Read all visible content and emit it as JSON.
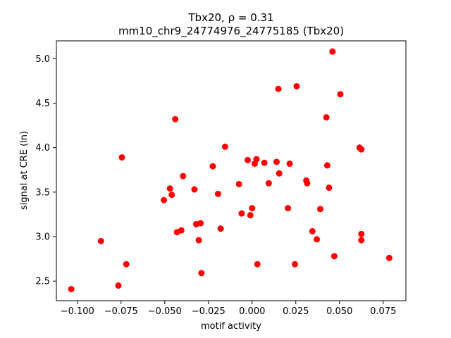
{
  "chart_data": {
    "type": "scatter",
    "title_line1": "Tbx20, ρ = 0.31",
    "title_line2": "mm10_chr9_24774976_24775185 (Tbx20)",
    "xlabel": "motif activity",
    "ylabel": "signal at CRE (ln)",
    "xlim": [
      -0.112,
      0.088
    ],
    "ylim": [
      2.28,
      5.2
    ],
    "xticks": [
      -0.1,
      -0.075,
      -0.05,
      -0.025,
      0.0,
      0.025,
      0.05,
      0.075
    ],
    "xtick_labels": [
      "−0.100",
      "−0.075",
      "−0.050",
      "−0.025",
      "0.000",
      "0.025",
      "0.050",
      "0.075"
    ],
    "yticks": [
      2.5,
      3.0,
      3.5,
      4.0,
      4.5,
      5.0
    ],
    "ytick_labels": [
      "2.5",
      "3.0",
      "3.5",
      "4.0",
      "4.5",
      "5.0"
    ],
    "marker_color": "#ff0000",
    "points": [
      [
        -0.1035,
        2.41
      ],
      [
        -0.0765,
        2.45
      ],
      [
        -0.072,
        2.69
      ],
      [
        -0.0865,
        2.95
      ],
      [
        -0.0745,
        3.89
      ],
      [
        -0.0505,
        3.41
      ],
      [
        -0.047,
        3.54
      ],
      [
        -0.046,
        3.47
      ],
      [
        -0.044,
        4.32
      ],
      [
        -0.043,
        3.05
      ],
      [
        -0.0405,
        3.07
      ],
      [
        -0.0395,
        3.68
      ],
      [
        -0.033,
        3.53
      ],
      [
        -0.032,
        3.14
      ],
      [
        -0.0305,
        2.96
      ],
      [
        -0.0295,
        3.15
      ],
      [
        -0.029,
        2.59
      ],
      [
        -0.0225,
        3.79
      ],
      [
        -0.0195,
        3.48
      ],
      [
        -0.018,
        3.09
      ],
      [
        -0.0155,
        4.01
      ],
      [
        -0.0075,
        3.59
      ],
      [
        -0.006,
        3.26
      ],
      [
        -0.0025,
        3.86
      ],
      [
        -0.001,
        3.24
      ],
      [
        0.0,
        3.32
      ],
      [
        0.0015,
        3.82
      ],
      [
        0.0025,
        3.87
      ],
      [
        0.003,
        2.69
      ],
      [
        0.007,
        3.83
      ],
      [
        0.0095,
        3.6
      ],
      [
        0.014,
        3.84
      ],
      [
        0.015,
        4.66
      ],
      [
        0.0155,
        3.71
      ],
      [
        0.0205,
        3.32
      ],
      [
        0.0215,
        3.82
      ],
      [
        0.0245,
        2.69
      ],
      [
        0.0255,
        4.69
      ],
      [
        0.031,
        3.63
      ],
      [
        0.0315,
        3.6
      ],
      [
        0.0345,
        3.06
      ],
      [
        0.037,
        2.97
      ],
      [
        0.039,
        3.31
      ],
      [
        0.0425,
        4.34
      ],
      [
        0.043,
        3.8
      ],
      [
        0.044,
        3.55
      ],
      [
        0.046,
        5.08
      ],
      [
        0.047,
        2.78
      ],
      [
        0.0505,
        4.6
      ],
      [
        0.0615,
        4.0
      ],
      [
        0.0625,
        3.98
      ],
      [
        0.0625,
        3.03
      ],
      [
        0.0625,
        2.96
      ],
      [
        0.0785,
        2.76
      ]
    ]
  }
}
